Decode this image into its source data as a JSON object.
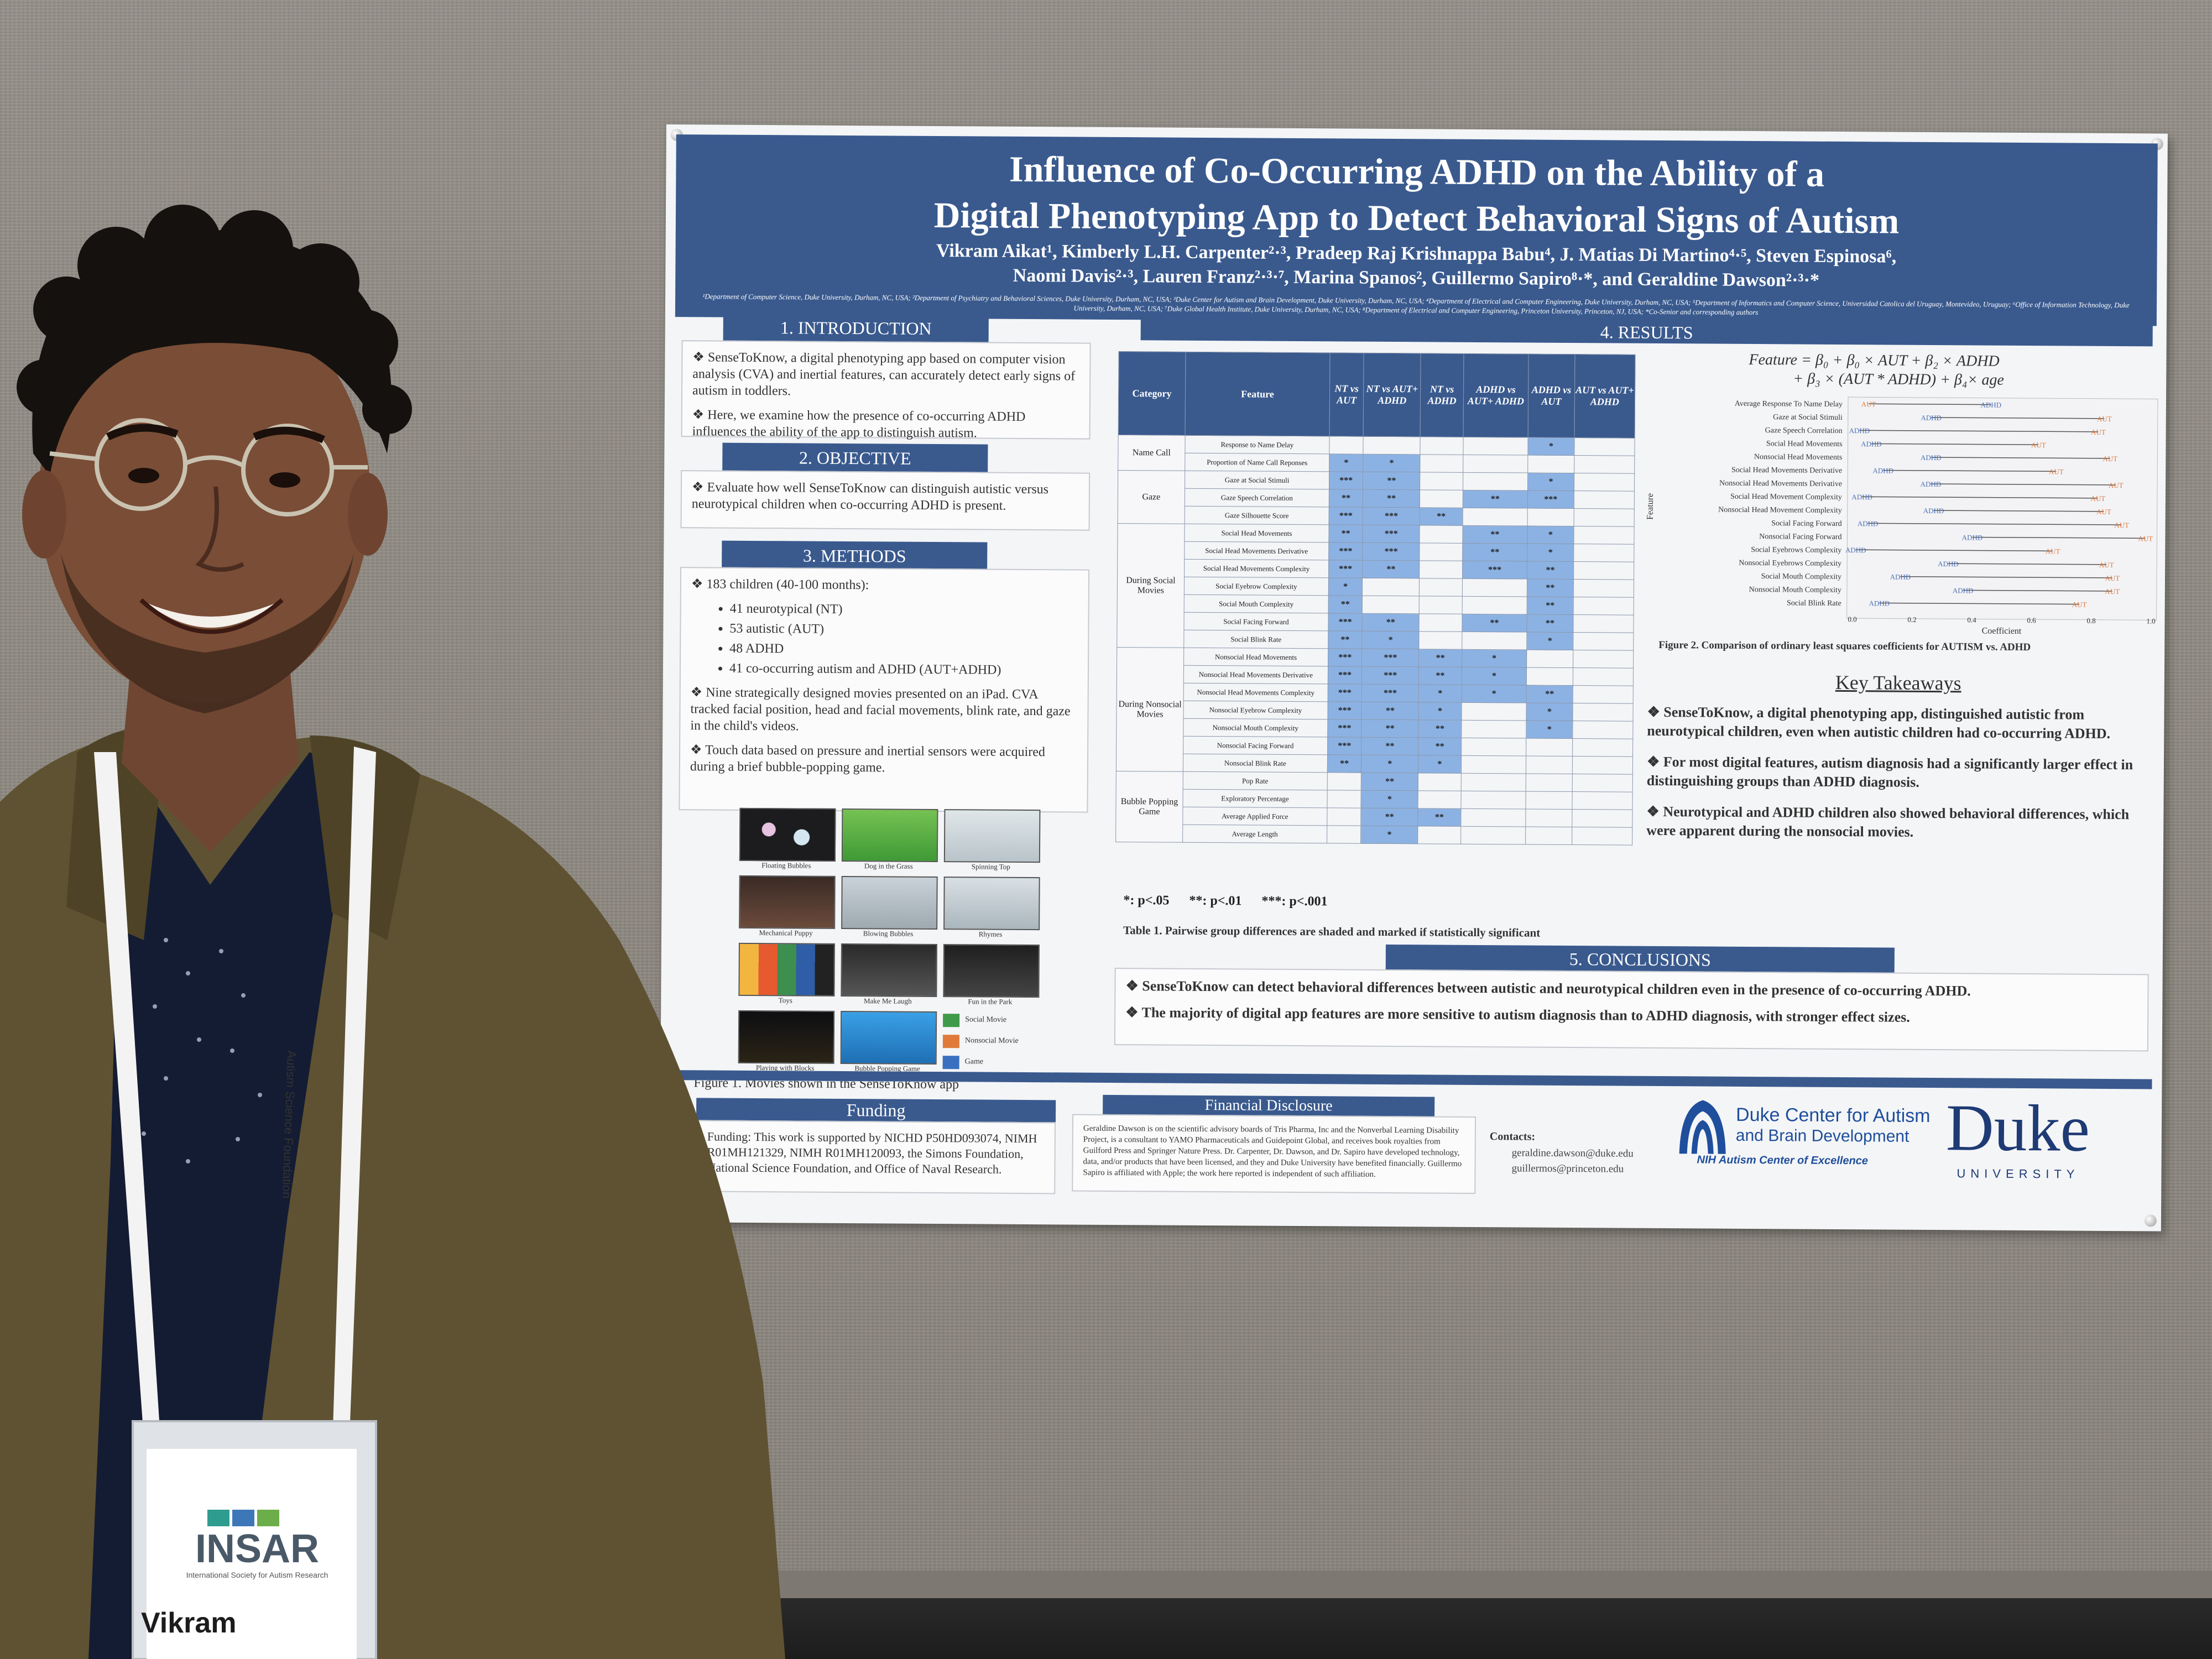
{
  "poster": {
    "title_line1": "Influence of Co-Occurring ADHD on the Ability of a",
    "title_line2": "Digital Phenotyping App to Detect Behavioral Signs of Autism",
    "authors_line1": "Vikram Aikat¹, Kimberly L.H. Carpenter²·³, Pradeep Raj Krishnappa Babu⁴, J. Matias Di Martino⁴·⁵, Steven Espinosa⁶,",
    "authors_line2": "Naomi Davis²·³, Lauren Franz²·³·⁷, Marina Spanos², Guillermo Sapiro⁸·*, and Geraldine Dawson²·³·*",
    "affiliations": "¹Department of Computer Science, Duke University, Durham, NC, USA; ²Department of Psychiatry and Behavioral Sciences, Duke University, Durham, NC, USA; ³Duke Center for Autism and Brain Development, Duke University, Durham, NC, USA; ⁴Department of Electrical and Computer Engineering, Duke University, Durham, NC, USA; ⁵Department of Informatics and Computer Science, Universidad Catolica del Uruguay, Montevideo, Uruguay; ⁶Office of Information Technology, Duke University, Durham, NC, USA; ⁷Duke Global Health Institute, Duke University, Durham, NC, USA; ⁸Department of Electrical and Computer Engineering, Princeton University, Princeton, NJ, USA; *Co-Senior and corresponding authors",
    "intro": {
      "heading": "1. INTRODUCTION",
      "p1": "❖ SenseToKnow, a digital phenotyping app based on computer vision analysis (CVA) and inertial features, can accurately detect early signs of autism in toddlers.",
      "p2": "❖ Here, we examine how the presence of co-occurring ADHD influences the ability of the app to distinguish autism."
    },
    "objective": {
      "heading": "2. OBJECTIVE",
      "p1": "❖ Evaluate how well SenseToKnow can distinguish autistic versus neurotypical children when co-occurring ADHD is present."
    },
    "methods": {
      "heading": "3. METHODS",
      "p1": "❖ 183 children (40-100 months):",
      "items": [
        "41 neurotypical (NT)",
        "53 autistic (AUT)",
        "48 ADHD",
        "41 co-occurring autism and ADHD (AUT+ADHD)"
      ],
      "p2": "❖ Nine strategically designed movies presented on an iPad. CVA tracked facial position, head and facial movements, blink rate, and gaze in the child's videos.",
      "p3": "❖ Touch data based on pressure and inertial sensors were acquired during a brief bubble-popping game.",
      "thumbs": [
        "Floating Bubbles",
        "Dog in the Grass",
        "Spinning Top",
        "Mechanical Puppy",
        "Blowing Bubbles",
        "Rhymes",
        "Toys",
        "Make Me Laugh",
        "Fun in the Park",
        "Playing with Blocks",
        "Bubble Popping Game"
      ],
      "legend": [
        "Social Movie",
        "Nonsocial Movie",
        "Game"
      ],
      "fig1": "Figure 1. Movies shown in the SenseToKnow app"
    },
    "results": {
      "heading": "4. RESULTS",
      "col_category": "Category",
      "col_feature": "Feature",
      "cols": [
        "NT vs AUT",
        "NT vs AUT+ ADHD",
        "NT vs ADHD",
        "ADHD vs AUT+ ADHD",
        "ADHD vs AUT",
        "AUT vs AUT+ ADHD"
      ],
      "groups": [
        {
          "name": "Name Call",
          "rows": [
            {
              "f": "Response to Name Delay",
              "v": [
                "",
                "",
                "",
                "",
                "*",
                ""
              ]
            },
            {
              "f": "Proportion of Name Call Reponses",
              "v": [
                "*",
                "*",
                "",
                "",
                "",
                ""
              ]
            }
          ]
        },
        {
          "name": "Gaze",
          "rows": [
            {
              "f": "Gaze at Social Stimuli",
              "v": [
                "***",
                "**",
                "",
                "",
                "*",
                ""
              ]
            },
            {
              "f": "Gaze Speech Correlation",
              "v": [
                "**",
                "**",
                "",
                "**",
                "***",
                ""
              ]
            },
            {
              "f": "Gaze Silhouette Score",
              "v": [
                "***",
                "***",
                "**",
                "",
                "",
                ""
              ]
            }
          ]
        },
        {
          "name": "During Social Movies",
          "rows": [
            {
              "f": "Social Head Movements",
              "v": [
                "**",
                "***",
                "",
                "**",
                "*",
                ""
              ]
            },
            {
              "f": "Social Head Movements Derivative",
              "v": [
                "***",
                "***",
                "",
                "**",
                "*",
                ""
              ]
            },
            {
              "f": "Social Head Movements Complexity",
              "v": [
                "***",
                "**",
                "",
                "***",
                "**",
                ""
              ]
            },
            {
              "f": "Social Eyebrow Complexity",
              "v": [
                "*",
                "",
                "",
                "",
                "**",
                ""
              ]
            },
            {
              "f": "Social Mouth Complexity",
              "v": [
                "**",
                "",
                "",
                "",
                "**",
                ""
              ]
            },
            {
              "f": "Social Facing Forward",
              "v": [
                "***",
                "**",
                "",
                "**",
                "**",
                ""
              ]
            },
            {
              "f": "Social Blink Rate",
              "v": [
                "**",
                "*",
                "",
                "",
                "*",
                ""
              ]
            }
          ]
        },
        {
          "name": "During Nonsocial Movies",
          "rows": [
            {
              "f": "Nonsocial Head Movements",
              "v": [
                "***",
                "***",
                "**",
                "*",
                "",
                ""
              ]
            },
            {
              "f": "Nonsocial Head Movements Derivative",
              "v": [
                "***",
                "***",
                "**",
                "*",
                "",
                ""
              ]
            },
            {
              "f": "Nonsocial Head Movements Complexity",
              "v": [
                "***",
                "***",
                "*",
                "*",
                "**",
                ""
              ]
            },
            {
              "f": "Nonsocial Eyebrow Complexity",
              "v": [
                "***",
                "**",
                "*",
                "",
                "*",
                ""
              ]
            },
            {
              "f": "Nonsocial Mouth Complexity",
              "v": [
                "***",
                "**",
                "**",
                "",
                "*",
                ""
              ]
            },
            {
              "f": "Nonsocial Facing Forward",
              "v": [
                "***",
                "**",
                "**",
                "",
                "",
                ""
              ]
            },
            {
              "f": "Nonsocial Blink Rate",
              "v": [
                "**",
                "*",
                "*",
                "",
                "",
                ""
              ]
            }
          ]
        },
        {
          "name": "Bubble Popping Game",
          "rows": [
            {
              "f": "Pop Rate",
              "v": [
                "",
                "**",
                "",
                "",
                "",
                ""
              ]
            },
            {
              "f": "Exploratory Percentage",
              "v": [
                "",
                "*",
                "",
                "",
                "",
                ""
              ]
            },
            {
              "f": "Average Applied Force",
              "v": [
                "",
                "**",
                "**",
                "",
                "",
                ""
              ]
            },
            {
              "f": "Average Length",
              "v": [
                "",
                "*",
                "",
                "",
                "",
                ""
              ]
            }
          ]
        }
      ],
      "sig_note": "*: p<.05      **: p<.01      ***: p<.001",
      "table_caption": "Table 1. Pairwise group differences are shaded and marked if statistically significant",
      "equation_line1": "Feature = β₀ + β₀ × AUT + β₂ × ADHD",
      "equation_line2": "+ β₃ × (AUT * ADHD) + β₄× age",
      "fig2": "Figure 2. Comparison of ordinary least squares coefficients for AUTISM vs. ADHD"
    },
    "takeaways": {
      "heading": "Key Takeaways",
      "items": [
        "❖ SenseToKnow, a digital phenotyping app, distinguished autistic from neurotypical children, even when autistic children had co-occurring ADHD.",
        "❖ For most digital features, autism diagnosis had a significantly larger effect in distinguishing groups than ADHD diagnosis.",
        "❖ Neurotypical and ADHD children also showed behavioral differences, which were apparent during the nonsocial movies."
      ]
    },
    "conclusions": {
      "heading": "5. CONCLUSIONS",
      "items": [
        "❖ SenseToKnow can detect behavioral differences between autistic and neurotypical children even in the presence of co-occurring ADHD.",
        "❖ The majority of digital app features are more sensitive to autism diagnosis than to ADHD diagnosis, with stronger effect sizes."
      ]
    },
    "funding": {
      "heading": "Funding",
      "text": "Funding: This work is supported by NICHD P50HD093074, NIMH R01MH121329, NIMH R01MH120093, the Simons Foundation, National Science Foundation, and Office of Naval Research."
    },
    "disclosure": {
      "heading": "Financial Disclosure",
      "text": "Geraldine Dawson is on the scientific advisory boards of Tris Pharma, Inc and the Nonverbal Learning Disability Project, is a consultant to YAMO Pharmaceuticals and Guidepoint Global, and receives book royalties from Guilford Press and Springer Nature Press. Dr. Carpenter, Dr. Dawson, and Dr. Sapiro have developed technology, data, and/or products that have been licensed, and they and Duke University have benefited financially. Guillermo Sapiro is affiliated with Apple; the work here reported is independent of such affiliation."
    },
    "contacts": {
      "heading": "Contacts:",
      "email1": "geraldine.dawson@duke.edu",
      "email2": "guillermos@princeton.edu"
    },
    "logos": {
      "duke_center_line1": "Duke Center for Autism",
      "duke_center_line2": "and Brain Development",
      "nih": "NIH Autism Center of Excellence",
      "duke": "Duke",
      "university": "UNIVERSITY"
    }
  },
  "chart_data": {
    "type": "scatter",
    "title": "",
    "xlabel": "Coefficient",
    "ylabel": "Feature",
    "xlim": [
      0.0,
      1.0
    ],
    "xticks": [
      "0.0",
      "0.2",
      "0.4",
      "0.6",
      "0.8",
      "1.0"
    ],
    "categories": [
      "Average Response To Name Delay",
      "Gaze at Social Stimuli",
      "Gaze Speech Correlation",
      "Social Head Movements",
      "Nonsocial Head Movements",
      "Social Head Movements Derivative",
      "Nonsocial Head Movements Derivative",
      "Social Head Movement Complexity",
      "Nonsocial Head Movement Complexity",
      "Social Facing Forward",
      "Nonsocial Facing Forward",
      "Social Eyebrows Complexity",
      "Nonsocial Eyebrows Complexity",
      "Social Mouth Complexity",
      "Nonsocial Mouth Complexity",
      "Social Blink Rate"
    ],
    "series": [
      {
        "name": "AUT",
        "color": "#e07a3a",
        "values": [
          0.05,
          0.84,
          0.82,
          0.62,
          0.86,
          0.68,
          0.88,
          0.82,
          0.84,
          0.9,
          0.98,
          0.67,
          0.85,
          0.87,
          0.87,
          0.76
        ]
      },
      {
        "name": "ADHD",
        "color": "#4a6fb0",
        "values": [
          0.46,
          0.26,
          0.02,
          0.06,
          0.26,
          0.1,
          0.26,
          0.03,
          0.27,
          0.05,
          0.4,
          0.01,
          0.32,
          0.16,
          0.37,
          0.09
        ]
      }
    ]
  },
  "badge": {
    "org": "INSAR",
    "org_full": "International Society for Autism Research",
    "name": "Vikram",
    "lanyard_text": "Autism Science Foundation"
  }
}
